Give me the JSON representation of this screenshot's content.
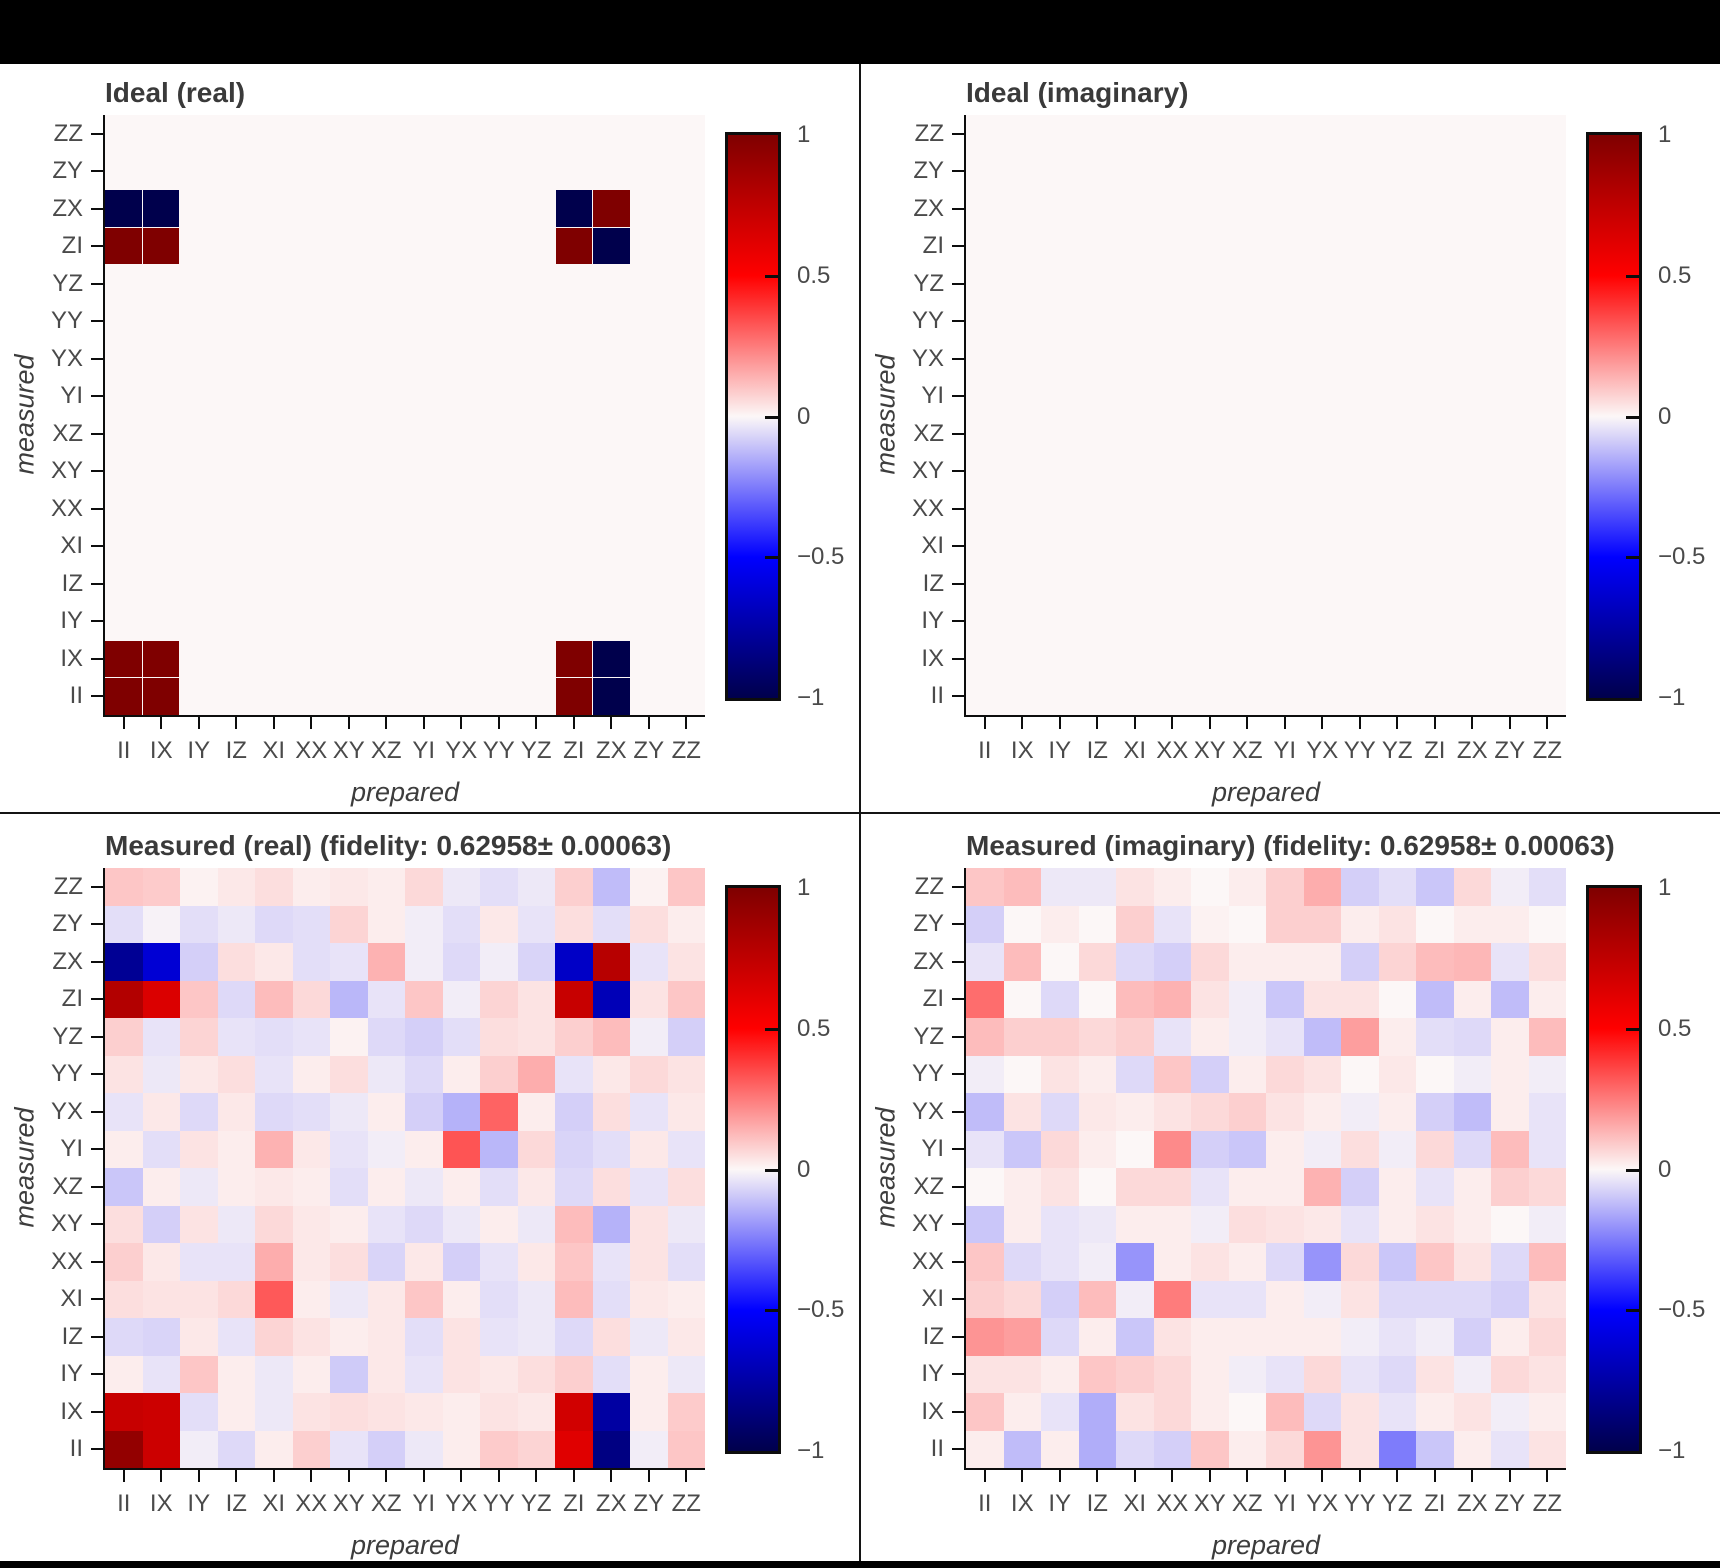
{
  "page": {
    "background_color": "#000000",
    "panel_background_color": "#ffffff",
    "divider_color": "#141414",
    "title_color": "#3a3a3a",
    "tick_label_color": "#4a4a4a"
  },
  "axes": {
    "x_label": "prepared",
    "y_label": "measured",
    "x_ticks": [
      "II",
      "IX",
      "IY",
      "IZ",
      "XI",
      "XX",
      "XY",
      "XZ",
      "YI",
      "YX",
      "YY",
      "YZ",
      "ZI",
      "ZX",
      "ZY",
      "ZZ"
    ],
    "y_ticks_top_to_bottom": [
      "ZZ",
      "ZY",
      "ZX",
      "ZI",
      "YZ",
      "YY",
      "YX",
      "YI",
      "XZ",
      "XY",
      "XX",
      "XI",
      "IZ",
      "IY",
      "IX",
      "II"
    ]
  },
  "colorbar": {
    "labels": [
      "1",
      "0.5",
      "0",
      "−0.5",
      "−1"
    ],
    "values": [
      1,
      0.5,
      0,
      -0.5,
      -1
    ],
    "max_color": "#7f0000",
    "mid_color": "#ffffff",
    "min_color": "#00004c"
  },
  "panels": [
    {
      "id": "ideal-real",
      "title": "Ideal (real)",
      "matrix_key": "ideal_real",
      "style": "ideal"
    },
    {
      "id": "ideal-imaginary",
      "title": "Ideal (imaginary)",
      "matrix_key": "ideal_imag",
      "style": "ideal"
    },
    {
      "id": "measured-real",
      "title": "Measured (real) (fidelity: 0.62958± 0.00063)",
      "matrix_key": "measured_real",
      "style": "measured"
    },
    {
      "id": "measured-imaginary",
      "title": "Measured (imaginary) (fidelity: 0.62958± 0.00063)",
      "matrix_key": "measured_imag",
      "style": "measured"
    }
  ],
  "chart_data": {
    "type": "heatmap",
    "colormap": "seismic",
    "vmin": -1,
    "vmax": 1,
    "fidelity": "0.62958",
    "fidelity_uncertainty": "0.00063",
    "columns_prepared": [
      "II",
      "IX",
      "IY",
      "IZ",
      "XI",
      "XX",
      "XY",
      "XZ",
      "YI",
      "YX",
      "YY",
      "YZ",
      "ZI",
      "ZX",
      "ZY",
      "ZZ"
    ],
    "rows_measured_top_to_bottom": [
      "ZZ",
      "ZY",
      "ZX",
      "ZI",
      "YZ",
      "YY",
      "YX",
      "YI",
      "XZ",
      "XY",
      "XX",
      "XI",
      "IZ",
      "IY",
      "IX",
      "II"
    ],
    "matrices": {
      "ideal_real": [
        [
          0,
          0,
          0,
          0,
          0,
          0,
          0,
          0,
          0,
          0,
          0,
          0,
          0,
          0,
          0,
          0
        ],
        [
          0,
          0,
          0,
          0,
          0,
          0,
          0,
          0,
          0,
          0,
          0,
          0,
          0,
          0,
          0,
          0
        ],
        [
          -1,
          -1,
          0,
          0,
          0,
          0,
          0,
          0,
          0,
          0,
          0,
          0,
          -1,
          1,
          0,
          0
        ],
        [
          1,
          1,
          0,
          0,
          0,
          0,
          0,
          0,
          0,
          0,
          0,
          0,
          1,
          -1,
          0,
          0
        ],
        [
          0,
          0,
          0,
          0,
          0,
          0,
          0,
          0,
          0,
          0,
          0,
          0,
          0,
          0,
          0,
          0
        ],
        [
          0,
          0,
          0,
          0,
          0,
          0,
          0,
          0,
          0,
          0,
          0,
          0,
          0,
          0,
          0,
          0
        ],
        [
          0,
          0,
          0,
          0,
          0,
          0,
          0,
          0,
          0,
          0,
          0,
          0,
          0,
          0,
          0,
          0
        ],
        [
          0,
          0,
          0,
          0,
          0,
          0,
          0,
          0,
          0,
          0,
          0,
          0,
          0,
          0,
          0,
          0
        ],
        [
          0,
          0,
          0,
          0,
          0,
          0,
          0,
          0,
          0,
          0,
          0,
          0,
          0,
          0,
          0,
          0
        ],
        [
          0,
          0,
          0,
          0,
          0,
          0,
          0,
          0,
          0,
          0,
          0,
          0,
          0,
          0,
          0,
          0
        ],
        [
          0,
          0,
          0,
          0,
          0,
          0,
          0,
          0,
          0,
          0,
          0,
          0,
          0,
          0,
          0,
          0
        ],
        [
          0,
          0,
          0,
          0,
          0,
          0,
          0,
          0,
          0,
          0,
          0,
          0,
          0,
          0,
          0,
          0
        ],
        [
          0,
          0,
          0,
          0,
          0,
          0,
          0,
          0,
          0,
          0,
          0,
          0,
          0,
          0,
          0,
          0
        ],
        [
          0,
          0,
          0,
          0,
          0,
          0,
          0,
          0,
          0,
          0,
          0,
          0,
          0,
          0,
          0,
          0
        ],
        [
          1,
          1,
          0,
          0,
          0,
          0,
          0,
          0,
          0,
          0,
          0,
          0,
          1,
          -1,
          0,
          0
        ],
        [
          1,
          1,
          0,
          0,
          0,
          0,
          0,
          0,
          0,
          0,
          0,
          0,
          1,
          -1,
          0,
          0
        ]
      ],
      "ideal_imag": [
        [
          0,
          0,
          0,
          0,
          0,
          0,
          0,
          0,
          0,
          0,
          0,
          0,
          0,
          0,
          0,
          0
        ],
        [
          0,
          0,
          0,
          0,
          0,
          0,
          0,
          0,
          0,
          0,
          0,
          0,
          0,
          0,
          0,
          0
        ],
        [
          0,
          0,
          0,
          0,
          0,
          0,
          0,
          0,
          0,
          0,
          0,
          0,
          0,
          0,
          0,
          0
        ],
        [
          0,
          0,
          0,
          0,
          0,
          0,
          0,
          0,
          0,
          0,
          0,
          0,
          0,
          0,
          0,
          0
        ],
        [
          0,
          0,
          0,
          0,
          0,
          0,
          0,
          0,
          0,
          0,
          0,
          0,
          0,
          0,
          0,
          0
        ],
        [
          0,
          0,
          0,
          0,
          0,
          0,
          0,
          0,
          0,
          0,
          0,
          0,
          0,
          0,
          0,
          0
        ],
        [
          0,
          0,
          0,
          0,
          0,
          0,
          0,
          0,
          0,
          0,
          0,
          0,
          0,
          0,
          0,
          0
        ],
        [
          0,
          0,
          0,
          0,
          0,
          0,
          0,
          0,
          0,
          0,
          0,
          0,
          0,
          0,
          0,
          0
        ],
        [
          0,
          0,
          0,
          0,
          0,
          0,
          0,
          0,
          0,
          0,
          0,
          0,
          0,
          0,
          0,
          0
        ],
        [
          0,
          0,
          0,
          0,
          0,
          0,
          0,
          0,
          0,
          0,
          0,
          0,
          0,
          0,
          0,
          0
        ],
        [
          0,
          0,
          0,
          0,
          0,
          0,
          0,
          0,
          0,
          0,
          0,
          0,
          0,
          0,
          0,
          0
        ],
        [
          0,
          0,
          0,
          0,
          0,
          0,
          0,
          0,
          0,
          0,
          0,
          0,
          0,
          0,
          0,
          0
        ],
        [
          0,
          0,
          0,
          0,
          0,
          0,
          0,
          0,
          0,
          0,
          0,
          0,
          0,
          0,
          0,
          0
        ],
        [
          0,
          0,
          0,
          0,
          0,
          0,
          0,
          0,
          0,
          0,
          0,
          0,
          0,
          0,
          0,
          0
        ],
        [
          0,
          0,
          0,
          0,
          0,
          0,
          0,
          0,
          0,
          0,
          0,
          0,
          0,
          0,
          0,
          0
        ],
        [
          0,
          0,
          0,
          0,
          0,
          0,
          0,
          0,
          0,
          0,
          0,
          0,
          0,
          0,
          0,
          0
        ]
      ],
      "measured_real": [
        [
          0.1,
          0.09,
          0.01,
          0.03,
          0.05,
          0.02,
          0.03,
          0.02,
          0.06,
          -0.03,
          -0.05,
          -0.03,
          0.08,
          -0.12,
          0.01,
          0.1
        ],
        [
          -0.05,
          -0.01,
          -0.05,
          -0.03,
          -0.06,
          -0.05,
          0.07,
          0.02,
          -0.02,
          -0.05,
          0.03,
          -0.04,
          0.05,
          -0.05,
          0.05,
          0.02
        ],
        [
          -0.8,
          -0.62,
          -0.08,
          0.05,
          0.03,
          -0.05,
          -0.04,
          0.14,
          -0.02,
          -0.06,
          -0.02,
          -0.07,
          -0.66,
          0.78,
          -0.04,
          0.04
        ],
        [
          0.8,
          0.64,
          0.1,
          -0.06,
          0.12,
          0.06,
          -0.13,
          -0.04,
          0.1,
          -0.02,
          0.07,
          0.04,
          0.72,
          -0.7,
          0.04,
          0.1
        ],
        [
          0.08,
          -0.04,
          0.07,
          -0.04,
          -0.05,
          -0.04,
          0.01,
          -0.06,
          -0.08,
          -0.05,
          0.05,
          0.04,
          0.08,
          0.12,
          -0.02,
          -0.08
        ],
        [
          0.04,
          -0.03,
          0.03,
          0.05,
          -0.04,
          0.02,
          0.05,
          -0.03,
          -0.06,
          0.02,
          0.08,
          0.15,
          -0.04,
          0.03,
          0.06,
          0.04
        ],
        [
          -0.04,
          0.03,
          -0.06,
          0.03,
          -0.06,
          -0.05,
          -0.03,
          0.02,
          -0.08,
          -0.14,
          0.3,
          0.02,
          -0.08,
          0.05,
          -0.04,
          0.03
        ],
        [
          0.02,
          -0.05,
          0.04,
          0.02,
          0.14,
          0.03,
          -0.04,
          -0.02,
          0.02,
          0.33,
          -0.13,
          0.06,
          -0.07,
          -0.05,
          0.03,
          -0.04
        ],
        [
          -0.1,
          0.02,
          -0.03,
          0.02,
          0.03,
          0.02,
          -0.05,
          0.02,
          -0.03,
          0.02,
          -0.05,
          0.03,
          -0.06,
          0.05,
          -0.04,
          0.05
        ],
        [
          0.05,
          -0.08,
          0.04,
          -0.03,
          0.06,
          0.03,
          0.02,
          -0.04,
          -0.06,
          -0.03,
          0.02,
          -0.03,
          0.12,
          -0.14,
          0.04,
          -0.03
        ],
        [
          0.08,
          0.03,
          -0.04,
          -0.04,
          0.15,
          0.03,
          0.05,
          -0.07,
          0.03,
          -0.08,
          -0.04,
          0.03,
          0.1,
          -0.04,
          0.04,
          -0.05
        ],
        [
          0.05,
          0.04,
          0.04,
          0.06,
          0.32,
          0.02,
          -0.03,
          0.03,
          0.1,
          0.02,
          -0.05,
          -0.03,
          0.12,
          -0.05,
          0.03,
          0.02
        ],
        [
          -0.06,
          -0.07,
          0.03,
          -0.04,
          0.07,
          0.04,
          0.02,
          0.03,
          -0.05,
          0.04,
          -0.04,
          -0.03,
          -0.06,
          0.05,
          -0.03,
          0.03
        ],
        [
          0.02,
          -0.04,
          0.1,
          0.02,
          -0.03,
          0.02,
          -0.09,
          0.03,
          -0.04,
          0.04,
          0.03,
          0.05,
          0.08,
          -0.05,
          0.02,
          -0.03
        ],
        [
          0.72,
          0.7,
          -0.05,
          0.02,
          -0.03,
          0.04,
          0.05,
          0.04,
          0.03,
          0.02,
          0.04,
          0.03,
          0.68,
          -0.76,
          0.02,
          0.09
        ],
        [
          0.92,
          0.7,
          -0.02,
          -0.06,
          0.02,
          0.08,
          -0.04,
          -0.08,
          -0.03,
          0.02,
          0.09,
          0.07,
          0.62,
          -0.85,
          -0.02,
          0.1
        ]
      ],
      "measured_imag": [
        [
          0.1,
          0.12,
          -0.03,
          -0.03,
          0.04,
          0.02,
          0.0,
          0.02,
          0.08,
          0.15,
          -0.08,
          -0.05,
          -0.1,
          0.06,
          -0.02,
          -0.05
        ],
        [
          -0.08,
          0.0,
          0.02,
          0.0,
          0.08,
          -0.04,
          0.01,
          0.0,
          0.08,
          0.08,
          0.02,
          0.04,
          0.0,
          0.02,
          0.02,
          0.0
        ],
        [
          -0.04,
          0.12,
          0.0,
          0.06,
          -0.06,
          -0.08,
          0.06,
          0.02,
          0.02,
          0.02,
          -0.08,
          0.07,
          0.12,
          0.13,
          -0.04,
          0.05
        ],
        [
          0.28,
          0.0,
          -0.06,
          0.0,
          0.12,
          0.14,
          0.04,
          -0.02,
          -0.1,
          0.04,
          0.04,
          0.0,
          -0.12,
          0.02,
          -0.12,
          0.02
        ],
        [
          0.12,
          0.08,
          0.08,
          0.06,
          0.08,
          -0.04,
          0.02,
          -0.02,
          -0.04,
          -0.12,
          0.18,
          0.02,
          -0.05,
          -0.06,
          0.02,
          0.12
        ],
        [
          -0.02,
          0.0,
          0.04,
          0.02,
          -0.06,
          0.1,
          -0.08,
          0.02,
          0.06,
          0.04,
          0.0,
          0.03,
          0.0,
          -0.02,
          0.02,
          -0.02
        ],
        [
          -0.12,
          0.04,
          -0.06,
          0.03,
          0.02,
          0.04,
          0.06,
          0.08,
          0.04,
          0.02,
          -0.02,
          0.02,
          -0.08,
          -0.12,
          0.02,
          -0.04
        ],
        [
          -0.04,
          -0.1,
          0.06,
          0.02,
          0.0,
          0.22,
          -0.08,
          -0.1,
          0.02,
          -0.02,
          0.05,
          -0.02,
          0.06,
          -0.06,
          0.12,
          -0.04
        ],
        [
          0.0,
          0.02,
          0.04,
          0.0,
          0.06,
          0.06,
          -0.04,
          0.02,
          0.02,
          0.14,
          -0.08,
          0.02,
          -0.04,
          0.02,
          0.08,
          0.06
        ],
        [
          -0.1,
          0.02,
          -0.04,
          -0.03,
          0.02,
          0.02,
          -0.02,
          0.05,
          0.04,
          0.03,
          -0.04,
          0.02,
          0.04,
          0.02,
          0.0,
          -0.02
        ],
        [
          0.1,
          -0.06,
          -0.04,
          -0.02,
          -0.2,
          0.02,
          0.04,
          0.02,
          -0.06,
          -0.2,
          0.06,
          -0.1,
          0.1,
          0.04,
          -0.06,
          0.12
        ],
        [
          0.08,
          0.06,
          -0.08,
          0.12,
          -0.02,
          0.25,
          -0.04,
          -0.04,
          0.02,
          -0.02,
          0.04,
          -0.06,
          -0.06,
          -0.06,
          -0.08,
          0.04
        ],
        [
          0.2,
          0.18,
          -0.06,
          0.02,
          -0.1,
          0.04,
          0.02,
          0.02,
          0.02,
          0.02,
          -0.02,
          -0.04,
          -0.02,
          -0.08,
          0.02,
          0.06
        ],
        [
          0.04,
          0.04,
          0.02,
          0.1,
          0.08,
          0.06,
          0.02,
          -0.02,
          -0.04,
          0.06,
          -0.04,
          -0.06,
          0.04,
          -0.02,
          0.06,
          0.04
        ],
        [
          0.1,
          0.02,
          -0.04,
          -0.15,
          0.04,
          0.06,
          0.02,
          0.0,
          0.12,
          -0.06,
          0.04,
          -0.04,
          0.02,
          0.04,
          -0.02,
          0.02
        ],
        [
          0.02,
          -0.12,
          0.02,
          -0.15,
          -0.06,
          -0.08,
          0.1,
          0.02,
          0.06,
          0.2,
          0.04,
          -0.25,
          -0.1,
          0.02,
          -0.04,
          0.04
        ]
      ]
    }
  }
}
